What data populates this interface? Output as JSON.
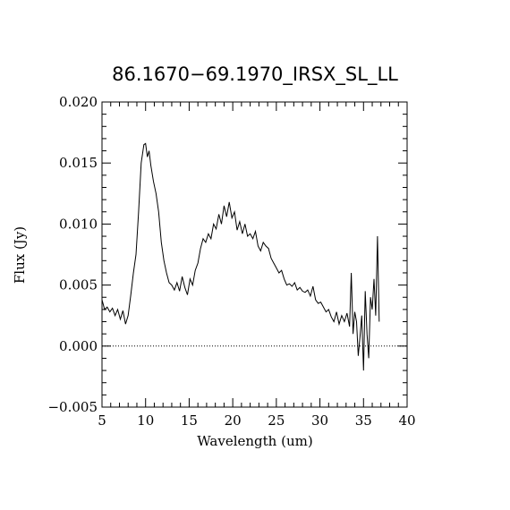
{
  "chart_data": {
    "type": "line",
    "title": "86.1670−69.1970_IRSX_SL_LL",
    "xlabel": "Wavelength (um)",
    "ylabel": "Flux (Jy)",
    "xlim": [
      5,
      40
    ],
    "ylim": [
      -0.005,
      0.02
    ],
    "x_ticks": [
      5,
      10,
      15,
      20,
      25,
      30,
      35,
      40
    ],
    "x_tick_labels": [
      "5",
      "10",
      "15",
      "20",
      "25",
      "30",
      "35",
      "40"
    ],
    "y_ticks": [
      -0.005,
      0.0,
      0.005,
      0.01,
      0.015,
      0.02
    ],
    "y_tick_labels": [
      "−0.005",
      "0.000",
      "0.005",
      "0.010",
      "0.015",
      "0.020"
    ],
    "zero_line": {
      "y": 0.0,
      "style": "dotted"
    },
    "grid": false,
    "series": [
      {
        "x": [
          5.0,
          5.3,
          5.6,
          5.9,
          6.2,
          6.5,
          6.8,
          7.1,
          7.4,
          7.7,
          8.0,
          8.3,
          8.6,
          8.9,
          9.2,
          9.5,
          9.8,
          10.0,
          10.2,
          10.4,
          10.6,
          10.9,
          11.2,
          11.5,
          11.8,
          12.1,
          12.4,
          12.7,
          13.0,
          13.3,
          13.6,
          13.9,
          14.2,
          14.5,
          14.8,
          15.1,
          15.4,
          15.7,
          16.0,
          16.3,
          16.6,
          16.9,
          17.2,
          17.5,
          17.8,
          18.1,
          18.4,
          18.7,
          19.0,
          19.3,
          19.6,
          19.9,
          20.2,
          20.5,
          20.8,
          21.1,
          21.4,
          21.7,
          22.0,
          22.3,
          22.6,
          22.9,
          23.2,
          23.5,
          23.8,
          24.1,
          24.4,
          24.7,
          25.0,
          25.3,
          25.6,
          25.9,
          26.2,
          26.5,
          26.8,
          27.1,
          27.4,
          27.7,
          28.0,
          28.3,
          28.6,
          28.9,
          29.2,
          29.5,
          29.8,
          30.1,
          30.4,
          30.7,
          31.0,
          31.3,
          31.6,
          31.9,
          32.2,
          32.5,
          32.8,
          33.1,
          33.4,
          33.6,
          33.8,
          34.0,
          34.2,
          34.4,
          34.6,
          34.8,
          35.0,
          35.2,
          35.4,
          35.6,
          35.8,
          36.0,
          36.2,
          36.4,
          36.6,
          36.8
        ],
        "y": [
          0.0038,
          0.003,
          0.0032,
          0.0028,
          0.0031,
          0.0025,
          0.003,
          0.0022,
          0.0029,
          0.0018,
          0.0025,
          0.0042,
          0.006,
          0.0075,
          0.011,
          0.015,
          0.0165,
          0.0166,
          0.0155,
          0.016,
          0.0148,
          0.0135,
          0.0125,
          0.011,
          0.0085,
          0.007,
          0.006,
          0.0052,
          0.005,
          0.0046,
          0.0052,
          0.0045,
          0.0057,
          0.0048,
          0.0042,
          0.0055,
          0.005,
          0.0062,
          0.0068,
          0.008,
          0.0088,
          0.0085,
          0.0092,
          0.0088,
          0.01,
          0.0096,
          0.0108,
          0.01,
          0.0115,
          0.0106,
          0.0118,
          0.0105,
          0.011,
          0.0095,
          0.0102,
          0.0092,
          0.01,
          0.009,
          0.0092,
          0.0088,
          0.0094,
          0.0082,
          0.0078,
          0.0085,
          0.0082,
          0.008,
          0.0072,
          0.0068,
          0.0064,
          0.006,
          0.0062,
          0.0055,
          0.005,
          0.0051,
          0.0049,
          0.0052,
          0.0046,
          0.0048,
          0.0045,
          0.0044,
          0.0046,
          0.0041,
          0.0049,
          0.0038,
          0.0035,
          0.0036,
          0.0032,
          0.0028,
          0.003,
          0.0024,
          0.002,
          0.0028,
          0.0018,
          0.0025,
          0.002,
          0.0027,
          0.0016,
          0.006,
          0.001,
          0.0028,
          0.002,
          -0.0008,
          0.0008,
          0.0025,
          -0.002,
          0.0045,
          0.001,
          -0.001,
          0.004,
          0.003,
          0.0055,
          0.0025,
          0.009,
          0.002
        ]
      }
    ]
  }
}
